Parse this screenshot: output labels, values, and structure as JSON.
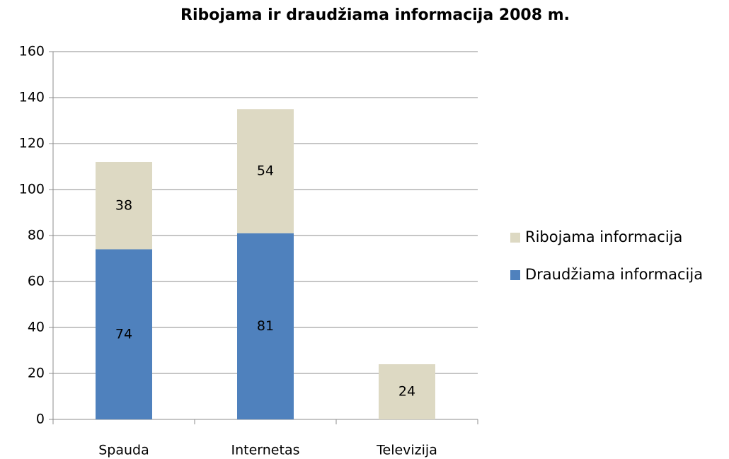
{
  "chart_data": {
    "type": "stacked_bar",
    "title": "Ribojama ir draudžiama informacija 2008 m.",
    "categories": [
      "Spauda",
      "Internetas",
      "Televizija"
    ],
    "series": [
      {
        "name": "Draudžiama informacija",
        "color": "#4f81bd",
        "values": [
          74,
          81,
          null
        ]
      },
      {
        "name": "Ribojama informacija",
        "color": "#ddd9c3",
        "values": [
          38,
          54,
          24
        ]
      }
    ],
    "ylim": [
      0,
      160
    ],
    "yticks": [
      0,
      20,
      40,
      60,
      80,
      100,
      120,
      140,
      160
    ],
    "grid": true,
    "legend": "right"
  }
}
